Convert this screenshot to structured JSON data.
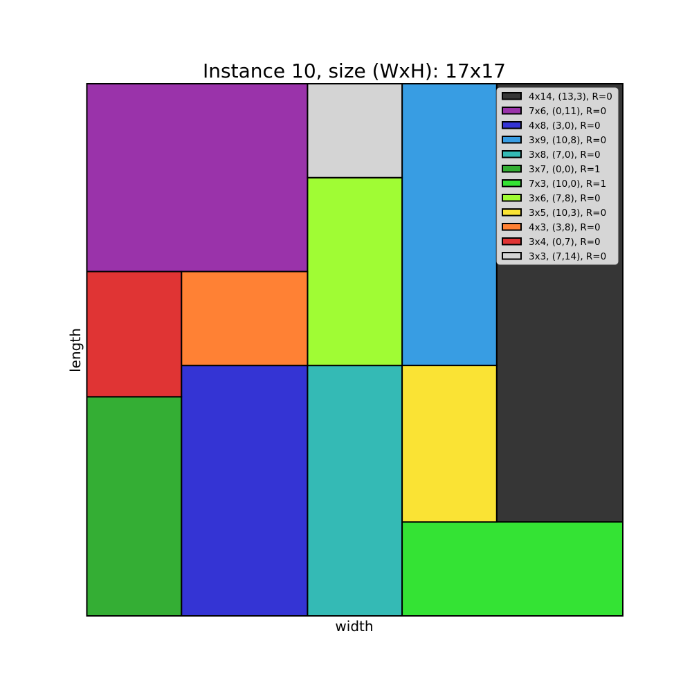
{
  "chart_data": {
    "type": "rectangle-packing",
    "title": "Instance 10, size (WxH): 17x17",
    "xlabel": "width",
    "ylabel": "length",
    "container": {
      "width": 17,
      "height": 17
    },
    "legend_position": "top-right",
    "rectangles": [
      {
        "label": "4x14, (13,3), R=0",
        "x": 13,
        "y": 3,
        "w": 4,
        "h": 14,
        "color": "#363636"
      },
      {
        "label": "7x6, (0,11), R=0",
        "x": 0,
        "y": 11,
        "w": 7,
        "h": 6,
        "color": "#9a33aa"
      },
      {
        "label": "4x8, (3,0), R=0",
        "x": 3,
        "y": 0,
        "w": 4,
        "h": 8,
        "color": "#3434d4"
      },
      {
        "label": "3x9, (10,8), R=0",
        "x": 10,
        "y": 8,
        "w": 3,
        "h": 9,
        "color": "#389de3"
      },
      {
        "label": "3x8, (7,0), R=0",
        "x": 7,
        "y": 0,
        "w": 3,
        "h": 8,
        "color": "#34bab5"
      },
      {
        "label": "3x7, (0,0), R=1",
        "x": 0,
        "y": 0,
        "w": 3,
        "h": 7,
        "color": "#34ae34"
      },
      {
        "label": "7x3, (10,0), R=1",
        "x": 10,
        "y": 0,
        "w": 7,
        "h": 3,
        "color": "#34e334"
      },
      {
        "label": "3x6, (7,8), R=0",
        "x": 7,
        "y": 8,
        "w": 3,
        "h": 6,
        "color": "#a0fc34"
      },
      {
        "label": "3x5, (10,3), R=0",
        "x": 10,
        "y": 3,
        "w": 3,
        "h": 5,
        "color": "#fae334"
      },
      {
        "label": "4x3, (3,8), R=0",
        "x": 3,
        "y": 8,
        "w": 4,
        "h": 3,
        "color": "#ff8134"
      },
      {
        "label": "3x4, (0,7), R=0",
        "x": 0,
        "y": 7,
        "w": 3,
        "h": 4,
        "color": "#e03434"
      },
      {
        "label": "3x3, (7,14), R=0",
        "x": 7,
        "y": 14,
        "w": 3,
        "h": 3,
        "color": "#d4d4d4"
      }
    ]
  }
}
